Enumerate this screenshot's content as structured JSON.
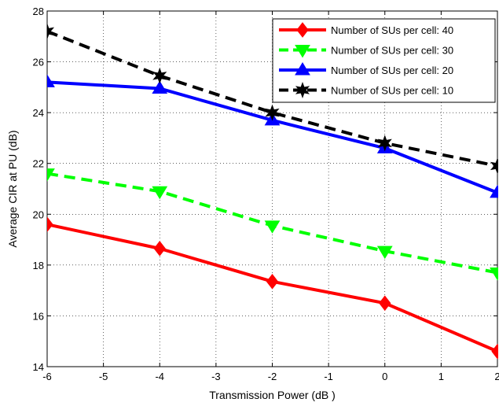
{
  "chart_data": {
    "type": "line",
    "title": "",
    "xlabel": "Transmission Power (dB )",
    "ylabel": "Average CIR at PU (dB)",
    "xlim": [
      -6,
      2
    ],
    "ylim": [
      14,
      28
    ],
    "xticks": [
      -6,
      -5,
      -4,
      -3,
      -2,
      -1,
      0,
      1,
      2
    ],
    "yticks": [
      14,
      16,
      18,
      20,
      22,
      24,
      26,
      28
    ],
    "grid": true,
    "legend_position": "top-right",
    "series": [
      {
        "name": "Number of SUs per cell: 40",
        "color": "#ff0000",
        "line_style": "solid",
        "marker": "diamond",
        "x": [
          -6,
          -4,
          -2,
          0,
          2
        ],
        "y": [
          19.6,
          18.65,
          17.35,
          16.5,
          14.6
        ]
      },
      {
        "name": "Number of SUs per cell: 30",
        "color": "#00ff00",
        "line_style": "dashed",
        "marker": "triangle-down",
        "x": [
          -6,
          -4,
          -2,
          0,
          2
        ],
        "y": [
          21.6,
          20.9,
          19.55,
          18.55,
          17.7
        ]
      },
      {
        "name": "Number of SUs per cell: 20",
        "color": "#0000ff",
        "line_style": "solid",
        "marker": "triangle-up",
        "x": [
          -6,
          -4,
          -2,
          0,
          2
        ],
        "y": [
          25.2,
          24.95,
          23.7,
          22.6,
          20.85
        ]
      },
      {
        "name": "Number of SUs per cell: 10",
        "color": "#000000",
        "line_style": "dashed",
        "marker": "hexagram",
        "x": [
          -6,
          -4,
          -2,
          0,
          2
        ],
        "y": [
          27.2,
          25.45,
          24.0,
          22.8,
          21.9
        ]
      }
    ]
  }
}
